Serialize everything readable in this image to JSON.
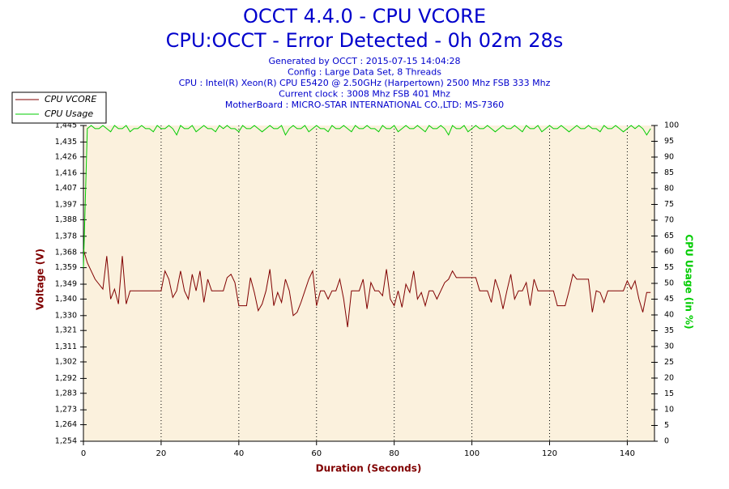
{
  "chart_data": {
    "type": "line",
    "title": "OCCT 4.4.0 - CPU VCORE",
    "subtitle": "CPU:OCCT - Error Detected - 0h 02m 28s",
    "info_lines": [
      "Generated by OCCT : 2015-07-15 14:04:28",
      "Config : Large Data Set, 8 Threads",
      "CPU : Intel(R) Xeon(R) CPU E5420 @ 2.50GHz (Harpertown) 2500 Mhz FSB 333 Mhz",
      "Current clock : 3008 Mhz FSB 401 Mhz",
      "MotherBoard : MICRO-STAR INTERNATIONAL CO.,LTD: MS-7360"
    ],
    "x_label": "Duration (Seconds)",
    "y_label": "Voltage (V)",
    "y2_label": "CPU Usage (in %)",
    "xlim": [
      0,
      147
    ],
    "xticks": [
      0,
      20,
      40,
      60,
      80,
      100,
      120,
      140
    ],
    "ylim": [
      1.254,
      1.445
    ],
    "yticks": [
      {
        "value": 1.254,
        "label": "1,254"
      },
      {
        "value": 1.264,
        "label": "1,264"
      },
      {
        "value": 1.273,
        "label": "1,273"
      },
      {
        "value": 1.283,
        "label": "1,283"
      },
      {
        "value": 1.292,
        "label": "1,292"
      },
      {
        "value": 1.302,
        "label": "1,302"
      },
      {
        "value": 1.311,
        "label": "1,311"
      },
      {
        "value": 1.321,
        "label": "1,321"
      },
      {
        "value": 1.33,
        "label": "1,330"
      },
      {
        "value": 1.34,
        "label": "1,340"
      },
      {
        "value": 1.349,
        "label": "1,349"
      },
      {
        "value": 1.359,
        "label": "1,359"
      },
      {
        "value": 1.368,
        "label": "1,368"
      },
      {
        "value": 1.378,
        "label": "1,378"
      },
      {
        "value": 1.388,
        "label": "1,388"
      },
      {
        "value": 1.397,
        "label": "1,397"
      },
      {
        "value": 1.407,
        "label": "1,407"
      },
      {
        "value": 1.416,
        "label": "1,416"
      },
      {
        "value": 1.426,
        "label": "1,426"
      },
      {
        "value": 1.435,
        "label": "1,435"
      },
      {
        "value": 1.445,
        "label": "1,445"
      }
    ],
    "y2lim": [
      0,
      100
    ],
    "y2ticks": [
      0,
      5,
      10,
      15,
      20,
      25,
      30,
      35,
      40,
      45,
      50,
      55,
      60,
      65,
      70,
      75,
      80,
      85,
      90,
      95,
      100
    ],
    "grid": true,
    "x": [
      0,
      1,
      2,
      3,
      4,
      5,
      6,
      7,
      8,
      9,
      10,
      11,
      12,
      13,
      14,
      15,
      16,
      17,
      18,
      19,
      20,
      21,
      22,
      23,
      24,
      25,
      26,
      27,
      28,
      29,
      30,
      31,
      32,
      33,
      34,
      35,
      36,
      37,
      38,
      39,
      40,
      41,
      42,
      43,
      44,
      45,
      46,
      47,
      48,
      49,
      50,
      51,
      52,
      53,
      54,
      55,
      56,
      57,
      58,
      59,
      60,
      61,
      62,
      63,
      64,
      65,
      66,
      67,
      68,
      69,
      70,
      71,
      72,
      73,
      74,
      75,
      76,
      77,
      78,
      79,
      80,
      81,
      82,
      83,
      84,
      85,
      86,
      87,
      88,
      89,
      90,
      91,
      92,
      93,
      94,
      95,
      96,
      97,
      98,
      99,
      100,
      101,
      102,
      103,
      104,
      105,
      106,
      107,
      108,
      109,
      110,
      111,
      112,
      113,
      114,
      115,
      116,
      117,
      118,
      119,
      120,
      121,
      122,
      123,
      124,
      125,
      126,
      127,
      128,
      129,
      130,
      131,
      132,
      133,
      134,
      135,
      136,
      137,
      138,
      139,
      140,
      141,
      142,
      143,
      144,
      145,
      146
    ],
    "series": [
      {
        "name": "CPU VCORE",
        "color": "#800000",
        "values": [
          1.37,
          1.362,
          1.357,
          1.352,
          1.349,
          1.346,
          1.366,
          1.34,
          1.346,
          1.337,
          1.366,
          1.337,
          1.345,
          1.345,
          1.345,
          1.345,
          1.345,
          1.345,
          1.345,
          1.345,
          1.345,
          1.357,
          1.352,
          1.341,
          1.345,
          1.357,
          1.345,
          1.34,
          1.355,
          1.345,
          1.357,
          1.338,
          1.352,
          1.345,
          1.345,
          1.345,
          1.345,
          1.353,
          1.355,
          1.35,
          1.336,
          1.336,
          1.336,
          1.353,
          1.344,
          1.333,
          1.337,
          1.345,
          1.358,
          1.336,
          1.344,
          1.338,
          1.352,
          1.345,
          1.33,
          1.332,
          1.338,
          1.345,
          1.352,
          1.357,
          1.336,
          1.345,
          1.345,
          1.34,
          1.345,
          1.345,
          1.352,
          1.34,
          1.323,
          1.345,
          1.345,
          1.345,
          1.352,
          1.334,
          1.35,
          1.345,
          1.345,
          1.342,
          1.358,
          1.34,
          1.336,
          1.345,
          1.335,
          1.349,
          1.344,
          1.357,
          1.34,
          1.344,
          1.336,
          1.345,
          1.345,
          1.34,
          1.345,
          1.35,
          1.352,
          1.357,
          1.353,
          1.353,
          1.353,
          1.353,
          1.353,
          1.353,
          1.345,
          1.345,
          1.345,
          1.338,
          1.352,
          1.345,
          1.334,
          1.345,
          1.355,
          1.34,
          1.345,
          1.345,
          1.35,
          1.336,
          1.352,
          1.345,
          1.345,
          1.345,
          1.345,
          1.345,
          1.336,
          1.336,
          1.336,
          1.345,
          1.355,
          1.352,
          1.352,
          1.352,
          1.352,
          1.332,
          1.345,
          1.344,
          1.338,
          1.345,
          1.345,
          1.345,
          1.345,
          1.345,
          1.351,
          1.346,
          1.351,
          1.34,
          1.332,
          1.344,
          1.344
        ]
      },
      {
        "name": "CPU Usage",
        "color": "#00cc00",
        "axis": "y2",
        "values": [
          55,
          99,
          100,
          99,
          99,
          100,
          99,
          98,
          100,
          99,
          99,
          100,
          98,
          99,
          99,
          100,
          99,
          99,
          98,
          100,
          99,
          99,
          100,
          99,
          97,
          100,
          99,
          99,
          100,
          98,
          99,
          100,
          99,
          99,
          98,
          100,
          99,
          100,
          99,
          99,
          98,
          100,
          99,
          99,
          100,
          99,
          98,
          99,
          100,
          99,
          99,
          100,
          97,
          99,
          100,
          99,
          99,
          100,
          98,
          99,
          100,
          99,
          99,
          98,
          100,
          99,
          99,
          100,
          99,
          98,
          100,
          99,
          99,
          100,
          99,
          99,
          98,
          100,
          99,
          99,
          100,
          98,
          99,
          100,
          99,
          99,
          100,
          99,
          98,
          100,
          99,
          99,
          100,
          99,
          97,
          100,
          99,
          99,
          100,
          98,
          99,
          100,
          99,
          99,
          100,
          99,
          98,
          99,
          100,
          99,
          99,
          100,
          99,
          98,
          100,
          99,
          99,
          100,
          98,
          99,
          100,
          99,
          99,
          100,
          99,
          98,
          99,
          100,
          99,
          99,
          100,
          99,
          99,
          98,
          100,
          99,
          99,
          100,
          99,
          98,
          99,
          100,
          99,
          100,
          99,
          97,
          99
        ]
      }
    ]
  }
}
